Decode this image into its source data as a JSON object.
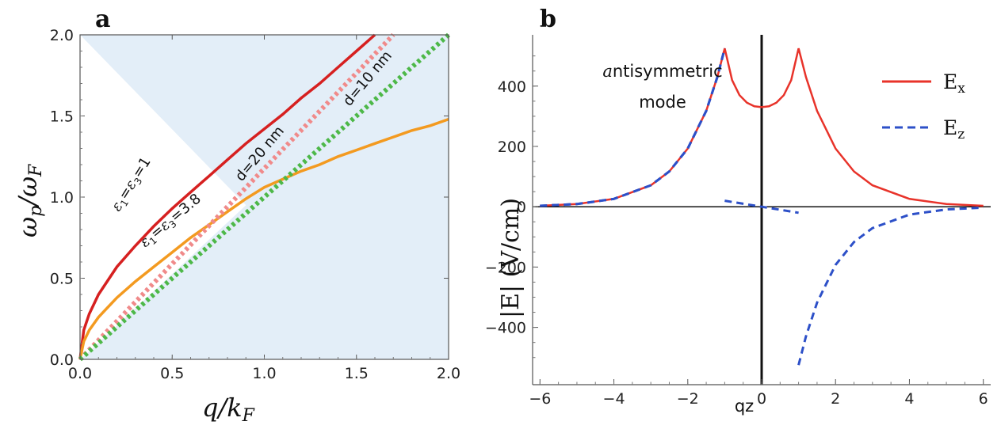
{
  "chart_data": [
    {
      "type": "line",
      "panel_label": "a",
      "xlabel": "q/k_F",
      "ylabel": "ω_p/ω_F",
      "xlim": [
        0,
        2.0
      ],
      "ylim": [
        0,
        2.0
      ],
      "x_ticks": [
        "0.0",
        "0.5",
        "1.0",
        "1.5",
        "2.0"
      ],
      "y_ticks": [
        "0.0",
        "0.5",
        "1.0",
        "1.5",
        "2.0"
      ],
      "shaded_region_color": "#e3eef8",
      "series": [
        {
          "name": "ε1=ε3=1",
          "style": "solid",
          "color": "#d62020",
          "x": [
            0,
            0.02,
            0.05,
            0.1,
            0.2,
            0.3,
            0.4,
            0.5,
            0.6,
            0.7,
            0.8,
            0.9,
            1.0,
            1.1,
            1.2,
            1.3,
            1.4,
            1.5,
            1.6
          ],
          "y": [
            0,
            0.18,
            0.28,
            0.4,
            0.57,
            0.7,
            0.82,
            0.93,
            1.03,
            1.13,
            1.23,
            1.33,
            1.42,
            1.51,
            1.61,
            1.7,
            1.8,
            1.9,
            2.0
          ]
        },
        {
          "name": "ε1=ε3=3.8",
          "style": "solid",
          "color": "#f39a20",
          "x": [
            0,
            0.02,
            0.05,
            0.1,
            0.2,
            0.3,
            0.4,
            0.5,
            0.6,
            0.7,
            0.8,
            0.9,
            1.0,
            1.1,
            1.2,
            1.3,
            1.4,
            1.5,
            1.6,
            1.7,
            1.8,
            1.9,
            2.0
          ],
          "y": [
            0,
            0.11,
            0.18,
            0.26,
            0.38,
            0.48,
            0.57,
            0.66,
            0.75,
            0.83,
            0.91,
            0.99,
            1.06,
            1.11,
            1.16,
            1.2,
            1.25,
            1.29,
            1.33,
            1.37,
            1.41,
            1.44,
            1.48
          ]
        },
        {
          "name": "d=20 nm",
          "style": "dotted",
          "color": "#f08a8a",
          "x": [
            0,
            1.7
          ],
          "y": [
            0,
            2.0
          ]
        },
        {
          "name": "d=10 nm",
          "style": "dotted",
          "color": "#4db848",
          "x": [
            0,
            2.0
          ],
          "y": [
            0,
            2.0
          ]
        }
      ],
      "annotations": [
        "ε1=ε3=1",
        "ε1=ε3=3.8",
        "d=20 nm",
        "d=10 nm"
      ]
    },
    {
      "type": "line",
      "panel_label": "b",
      "xlabel": "qz",
      "ylabel": "|E| (V/cm)",
      "xlim": [
        -6.2,
        6.2
      ],
      "ylim": [
        -590,
        570
      ],
      "x_ticks": [
        "-6",
        "-4",
        "-2",
        "0",
        "2",
        "4",
        "6"
      ],
      "y_ticks": [
        "-400",
        "-200",
        "0",
        "200",
        "400"
      ],
      "mode_label_line1": "antisymmetric",
      "mode_label_line2": "mode",
      "legend_position": "top-right",
      "series": [
        {
          "name": "E",
          "subscript": "x",
          "style": "solid",
          "color": "#e8332a",
          "x": [
            -6,
            -5,
            -4,
            -3,
            -2.5,
            -2,
            -1.5,
            -1.2,
            -1.0,
            -0.8,
            -0.6,
            -0.4,
            -0.2,
            0,
            0.2,
            0.4,
            0.6,
            0.8,
            1.0,
            1.2,
            1.5,
            2,
            2.5,
            3,
            4,
            5,
            6
          ],
          "y": [
            3,
            9,
            26,
            71,
            117,
            193,
            318,
            430,
            525,
            420,
            370,
            345,
            333,
            330,
            333,
            345,
            370,
            420,
            525,
            430,
            318,
            193,
            117,
            71,
            26,
            9,
            3
          ]
        },
        {
          "name": "E",
          "subscript": "z",
          "style": "dashed",
          "color": "#2d50c8",
          "segments": [
            {
              "x": [
                -6,
                -5,
                -4,
                -3,
                -2.5,
                -2,
                -1.5,
                -1.2,
                -1.0
              ],
              "y": [
                3,
                9,
                26,
                71,
                117,
                193,
                318,
                430,
                525
              ]
            },
            {
              "x": [
                -1.0,
                -0.5,
                0,
                0.5,
                1.0
              ],
              "y": [
                20,
                10,
                0,
                -10,
                -20
              ]
            },
            {
              "x": [
                1.0,
                1.2,
                1.5,
                2,
                2.5,
                3,
                4,
                5,
                6
              ],
              "y": [
                -525,
                -430,
                -318,
                -193,
                -117,
                -71,
                -26,
                -9,
                -3
              ]
            }
          ]
        }
      ]
    }
  ]
}
